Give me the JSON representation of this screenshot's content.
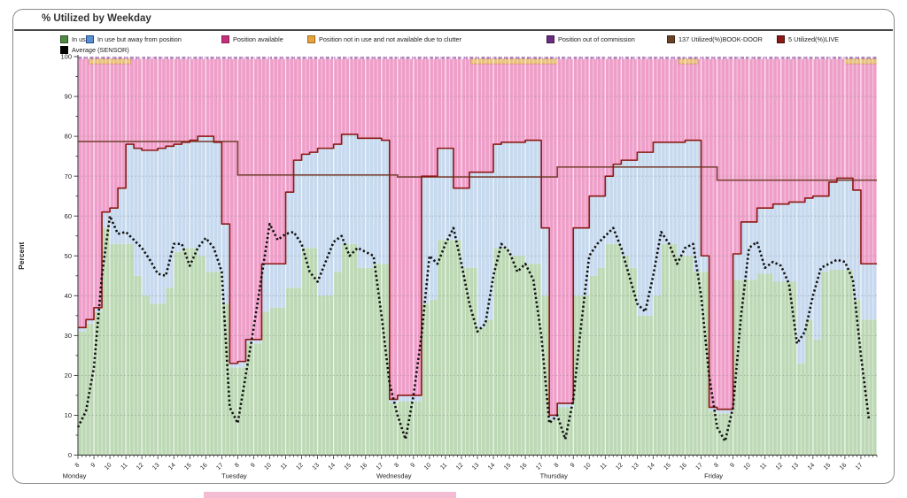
{
  "window": {
    "title": "% Utilized by Weekday"
  },
  "legend": {
    "row1": [
      {
        "name": "in-use",
        "label": "In use",
        "swatch": "#4e8a43",
        "border": "#2d5226"
      },
      {
        "name": "in-use-away",
        "label": "In use but away from position",
        "swatch": "#5b8fd0",
        "border": "#1f4e8c"
      },
      {
        "name": "position-available",
        "label": "Position available",
        "swatch": "#c2307c",
        "border": "#8c1d52"
      },
      {
        "name": "position-clutter",
        "label": "Position not in use and not available due to clutter",
        "swatch": "#e8a33c",
        "border": "#9c6a1e"
      },
      {
        "name": "out-of-commission",
        "label": "Position out of commission",
        "swatch": "#6a2d7f",
        "border": "#3d1a4a"
      },
      {
        "name": "book-door",
        "label": "137 Utilized(%)BOOK-DOOR",
        "swatch": "#6b4226",
        "border": "#3f2a16"
      },
      {
        "name": "live",
        "label": "5 Utilized(%)LIVE",
        "swatch": "#8b1a15",
        "border": "#4a0d0d"
      }
    ],
    "row2": [
      {
        "name": "average-sensor",
        "label": "Average (SENSOR)",
        "swatch": "#000000",
        "border": "#000000"
      }
    ]
  },
  "y_axis": {
    "label": "Percent",
    "min": 0,
    "max": 100,
    "tick_step": 10,
    "ticks": [
      "0",
      "10",
      "20",
      "30",
      "40",
      "50",
      "60",
      "70",
      "80",
      "90",
      "100"
    ]
  },
  "x_axis": {
    "hour_labels": [
      "8",
      "9",
      "10",
      "11",
      "12",
      "13",
      "14",
      "15",
      "16",
      "17"
    ],
    "day_labels": [
      "Monday",
      "Tuesday",
      "Wednesday",
      "Thursday",
      "Friday"
    ]
  },
  "chart_data": {
    "type": "area",
    "title": "% Utilized by Weekday",
    "ylabel": "Percent",
    "ylim": [
      0,
      100
    ],
    "stacking": "in_use + in_use_away stacked; position_available fills up to 99.4; clutter and out-of-commission bands at top",
    "sampling": {
      "start_hour": 8,
      "step_hours": 0.5,
      "points_per_day": 20,
      "day_span_hours": 10
    },
    "available_top": 99.4,
    "out_of_commission_band": [
      99.4,
      100
    ],
    "clutter_band": [
      98.2,
      99.4
    ],
    "clutter_segments": [
      {
        "day": 0,
        "from": 8.7,
        "to": 11.3
      },
      {
        "day": 2,
        "from": 12.6,
        "to": 18.0
      },
      {
        "day": 3,
        "from": 15.6,
        "to": 16.8
      },
      {
        "day": 4,
        "from": 16.0,
        "to": 18.0
      }
    ],
    "days": [
      {
        "name": "Monday",
        "book_door": 78.7,
        "in_use": [
          31,
          33,
          36,
          57,
          53,
          53,
          53,
          45,
          40,
          38,
          38,
          42,
          51,
          52,
          52,
          50,
          46,
          46,
          38,
          22
        ],
        "live_top": [
          32,
          34,
          37,
          61,
          62,
          67,
          78,
          77,
          76.5,
          76.5,
          77,
          77.5,
          78,
          78.5,
          79,
          80,
          80,
          78.5,
          58,
          23
        ],
        "average": [
          7,
          11,
          22,
          45,
          60,
          55.5,
          56,
          54,
          52,
          49,
          45.5,
          45,
          53,
          53,
          47.5,
          52,
          54.5,
          52,
          46,
          12
        ]
      },
      {
        "name": "Tuesday",
        "book_door": 70.3,
        "in_use": [
          22,
          28,
          28,
          36,
          37,
          37,
          42,
          42,
          52,
          52,
          40,
          40,
          46,
          53,
          53,
          47,
          47,
          48,
          48,
          13
        ],
        "live_top": [
          23.5,
          29,
          29,
          48,
          48,
          48,
          66,
          74,
          75.5,
          76,
          77,
          77,
          78,
          80.5,
          80.5,
          79.5,
          79.5,
          79.5,
          79,
          14
        ],
        "average": [
          8,
          20,
          32,
          45,
          58,
          54,
          55.5,
          56,
          53,
          46,
          43.5,
          48.5,
          53.5,
          55,
          50,
          52,
          51,
          50,
          35,
          18
        ]
      },
      {
        "name": "Wednesday",
        "book_door": 69.8,
        "in_use": [
          13.5,
          13.5,
          13.5,
          38,
          39,
          54,
          54,
          54,
          47,
          47,
          32,
          34,
          52,
          52,
          50,
          50,
          48,
          48,
          40,
          9
        ],
        "live_top": [
          15,
          15,
          15,
          70,
          70,
          77,
          77,
          67,
          67,
          71,
          71,
          71,
          78,
          78.5,
          78.5,
          78.5,
          79,
          79,
          57,
          10
        ],
        "average": [
          10,
          4,
          15,
          30,
          50,
          48,
          53,
          57,
          48,
          38,
          31,
          33,
          45,
          53,
          51,
          46,
          48,
          44,
          30,
          8
        ]
      },
      {
        "name": "Thursday",
        "book_door": 72.3,
        "in_use": [
          12,
          12,
          40,
          40,
          45,
          47,
          53,
          53,
          50,
          47,
          35,
          35,
          40,
          53,
          53,
          50,
          50,
          46,
          46,
          11
        ],
        "live_top": [
          13,
          13,
          57,
          57,
          65,
          65,
          70,
          73,
          74,
          74,
          76,
          76,
          78.5,
          78.5,
          78.5,
          78.5,
          79,
          79,
          50,
          12
        ],
        "average": [
          10,
          4,
          14,
          33,
          50,
          53,
          55,
          57,
          52,
          45,
          38,
          36,
          45,
          56,
          53,
          48,
          52,
          53,
          40,
          20
        ]
      },
      {
        "name": "Friday",
        "book_door": 69.0,
        "in_use": [
          10.5,
          10.5,
          44,
          44,
          44,
          45.5,
          45.5,
          43.5,
          43.5,
          43.5,
          23,
          34,
          29,
          46,
          46.5,
          46.5,
          46.5,
          39,
          34,
          34
        ],
        "live_top": [
          11.5,
          11.5,
          50.5,
          58.5,
          58.5,
          62,
          62,
          63,
          63,
          63.5,
          63.5,
          64.5,
          65,
          65,
          68.5,
          69.5,
          69.5,
          66.5,
          48,
          48
        ],
        "average": [
          7,
          3.5,
          12,
          35,
          52,
          53.5,
          47,
          48.5,
          47.5,
          43,
          28,
          31,
          40,
          47,
          48,
          49,
          48.5,
          44,
          25,
          9
        ]
      }
    ]
  },
  "colors": {
    "in_use_fill": "#bcd8b4",
    "away_fill": "#c6d9ee",
    "available_fill": "#ee9ec8",
    "clutter_fill": "#eac27d",
    "clutter_border": "#bb8733",
    "out_of_commission": "#a66fb0",
    "book_door_line": "#7d4638",
    "live_line": "#8f1812",
    "average_line": "#111111",
    "axis": "#333333",
    "grid": "#888888"
  }
}
